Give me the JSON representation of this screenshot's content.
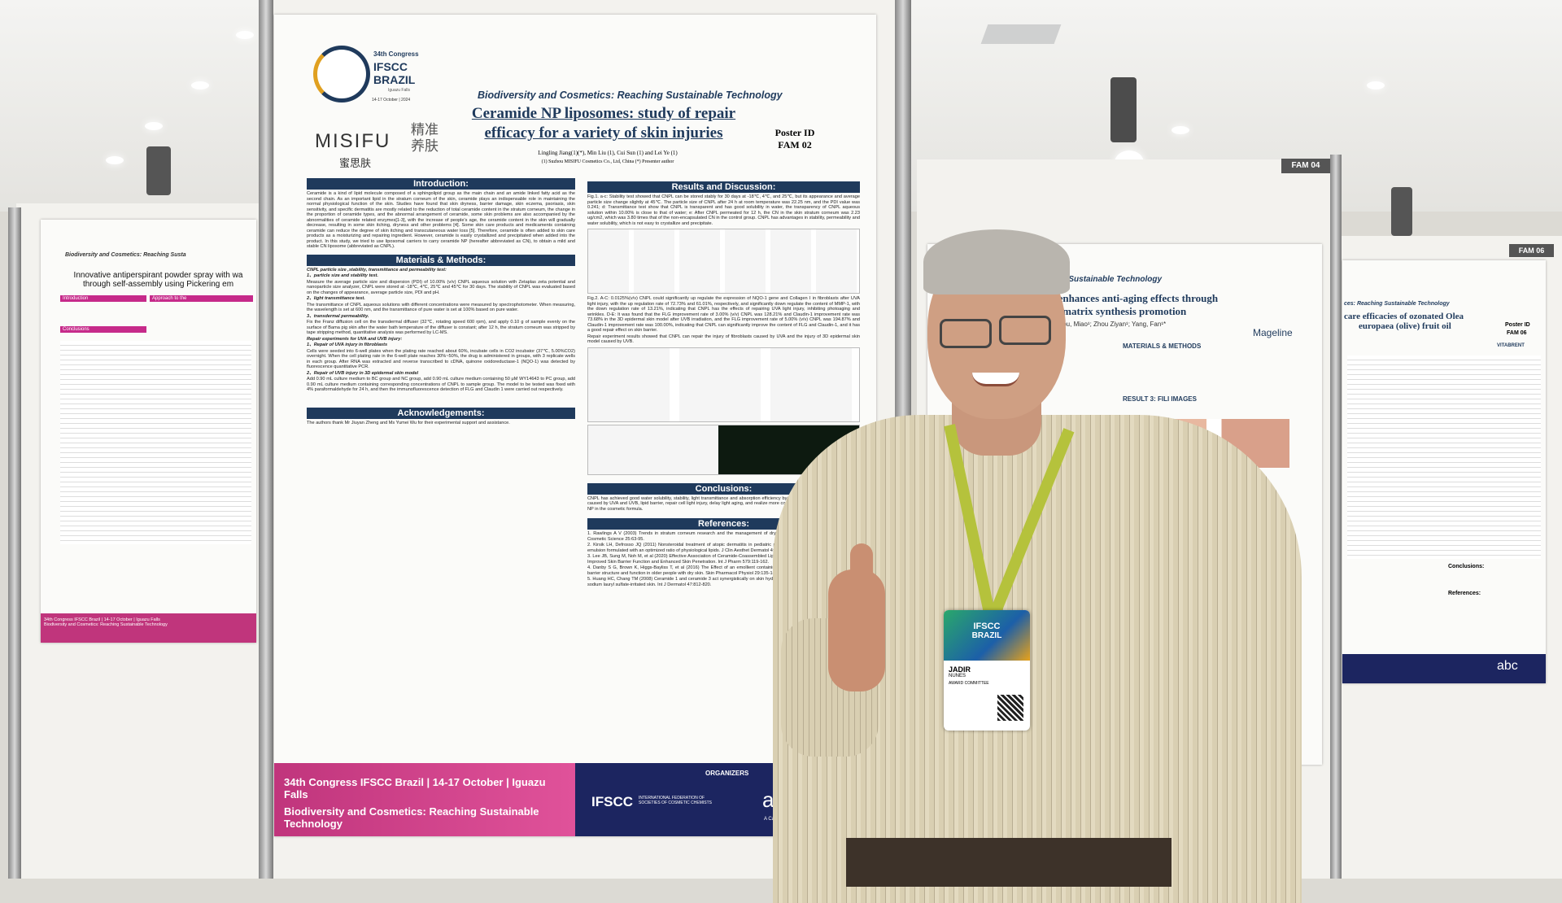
{
  "main_poster": {
    "logo": {
      "edition": "34th Congress",
      "name": "IFSCC",
      "country": "BRAZIL",
      "place": "Iguazu Falls",
      "dates": "14-17 October | 2024"
    },
    "brand": "MISIFU",
    "brand_chinese": "蜜思肤",
    "brand_seal": "精准养肤",
    "theme": "Biodiversity and Cosmetics: Reaching Sustainable Technology",
    "title": "Ceramide NP liposomes: study of repair efficacy for a variety of skin injuries",
    "authors": "Lingling Jiang(1)(*), Min Liu (1), Cui Sun (1) and Lei Ye (1)",
    "affiliation": "(1) Suzhou MISIFU Cosmetics Co., Ltd, China (*) Presenter author",
    "poster_id_label": "Poster ID",
    "poster_id": "FAM 02",
    "introduction": {
      "heading": "Introduction:",
      "text": "Ceramide is a kind of lipid molecule composed of a sphingolipid group as the main chain and an amide linked fatty acid as the second chain. As an important lipid in the stratum corneum of the skin, ceramide plays an indispensable role in maintaining the normal physiological function of the skin. Studies have found that skin dryness, barrier damage, skin eczema, psoriasis, skin sensitivity, and specific dermatitis are mostly related to the reduction of total ceramide content in the stratum corneum, the change in the proportion of ceramide types, and the abnormal arrangement of ceramide, some skin problems are also accompanied by the abnormalities of ceramide related enzymes[1-3], with the increase of people's age, the ceramide content in the skin will gradually decrease, resulting in some skin itching, dryness and other problems [4]. Some skin care products and medicaments containing ceramide can reduce the degree of skin itching and transcutaneous water loss [5]. Therefore, ceramide is often added to skin care products as a moisturizing and repairing ingredient. However, ceramide is easily crystallized and precipitated when added into the product. In this study, we tried to use liposomal carriers to carry ceramide NP (hereafter abbreviated as CN), to obtain a mild and stable CN liposome (abbreviated as CNPL)."
    },
    "methods": {
      "heading": "Materials & Methods:",
      "paragraphs": [
        "CNPL particle size ,stability, transmittance and permeability test:",
        "1、particle size and stability test.",
        "Measure the average particle size and dispersion (PDI) of 10.00% (v/v) CNPL aqueous solution with Zetaplas zeta potential and nanoparticle size analyzer, CNPL were stored at -18℃, 4℃, 25℃ and 45℃ for 30 days. The stability of CNPL was evaluated based on the changes of appearance, average particle size, PDI and pH.",
        "2、light transmittance test.",
        "The transmittance of CNPL aqueous solutions with different concentrations were measured by spectrophotometer. When measuring, the wavelength is set at 600 nm, and the transmittance of pure water is set at 100% based on pure water.",
        "3、transdermal permeability.",
        "Fix the Franz diffusion cell on the transdermal diffuser (32℃, rotating speed 600 rpm), and apply 0.10 g of sample evenly on the surface of Bama pig skin after the water bath temperature of the diffuser is constant; after 12 h, the stratum corneum was stripped by tape stripping method, quantitative analysis was performed by LC-MS.",
        "Repair experiments for UVA and UVB injury:",
        "1、Repair of UVA injury in fibroblasts",
        "Cells were seeded into 6-well plates when the plating rate reached about 60%, incubate cells in CO2 incubator (37℃, 5.00%CO2) overnight. When the cell plating rate in the 6-well plate reaches 30%~50%, the drug is administered in groups, with 3 replicate wells in each group. After RNA was extracted and reverse transcribed to cDNA, quinone oxidoreductase-1 (NQO-1) was detected by fluorescence quantitative PCR.",
        "2、Repair of UVB injury in 3D epidermal skin model",
        "Add 0.90 mL culture medium to BC group and NC group, add 0.90 mL culture medium containing 50 μM WY14643 to PC group, add 0.90 mL culture medium containing corresponding concentrations of CNPL to sample group. The model to be tested was fixed with 4% paraformaldehyde for 24 h, and then the immunofluorescence detection of FLG and Claudin 1 were carried out respectively."
      ]
    },
    "acknowledgements": {
      "heading": "Acknowledgements:",
      "text": "The authors thank Mr Jiuyan Zheng and Ms Yumei Wu for their experimental support and assistance."
    },
    "results": {
      "heading": "Results and Discussion:",
      "paragraphs": [
        "Fig.1. a-c: Stability test showed that CNPL can be stored stably for 30 days at -18℃, 4℃, and 25℃, but its appearance and average particle size change slightly at 45℃. The particle size of CNPL after 24 h at room temperature was 22.25 nm, and the PDI value was 0.241; d: Transmittance test show that CNPL is transparent and has good solubility in water, the transparency of CNPL aqueous solution within 10.00% is close to that of water; e: After CNPL permeated for 12 h, the CN in the skin stratum corneum was 2.23 ug/cm2, which was 3.80 times that of the non-encapsulated CN in the control group. CNPL has advantages in stability, permeability and water solubility, which is not easy to crystallize and precipitate.",
        "Fig.2. A-C: 0.0125%(v/v) CNPL could significantly up regulate the expression of NQO-1 gene and Collagen Ⅰ in fibroblasts after UVA light injury, with the up regulation rate of 72.73% and 61.01%, respectively, and significantly down regulate the content of MMP-1, with the down regulation rate of 13.21%, indicating that CNPL has the effects of repairing UVA light injury, inhibiting photoaging and wrinkles. D-E: It was found that the FLG improvement rate of 3.00% (v/v) CNPL was 128.21% and Claudin-1 improvement rate was 73.68% in the 3D epidermal skin model after UVB irradiation, and the FLG improvement rate of 5.00% (v/v) CNPL was 194.87% and Claudin-1 improvement rate was 100.00%, indicating that CNPL can significantly improve the content of FLG and Claudin-1, and it has a good repair effect on skin barrier.",
        "Repair experiment results showed that CNPL can repair the injury of fibroblasts caused by UVA and the injury of 3D epidermal skin model caused by UVB."
      ]
    },
    "conclusions": {
      "heading": "Conclusions:",
      "text": "CNPL has achieved good water solubility, stability, light transmittance and absorption efficiency by wrapping. It can repair skin injuries caused by UVA and UVB, lipid barrier, repair cell light injury, delay light aging, and realize more conversion and application of ceramide NP in the cosmetic formula."
    },
    "references": {
      "heading": "References:",
      "items": [
        "1. Rawlings A V (2003) Trends in stratum corneum research and the management of dry skin conditions. International Journal of Cosmetic Science 25:63-95.",
        "2. Kirsik LH, Defrosso JQ (2011) Nonsteroidal treatment of atopic dermatitis in pediatric patients with a ceramide-dominant topical emulsion formulated with an optimized ratio of physiological lipids. J Clin Aesthet Dermatol 4:25-31.",
        "3. Lee JB, Sung M, Noh M, et al (2020) Effective Association of Ceramide-Coassembled Lipid Nanovehicles with Stratum Corneum for Improved Skin Barrier Function and Enhanced Skin Penetration. Int J Pharm 579:119-162.",
        "4. Danby S G, Brown K, Higgs-Bayliss T, et al (2016) The Effect of an emollient containing urea, ceramide np, and lactate on skin barrier structure and function in older people with dry skin. Skin Pharmacol Physiol 29:135-147.",
        "5. Huang HC, Chang TM (2008) Ceramide 1 and ceramide 3 act synergistically on skin hydration and the transepidermal water loss of sodium lauryl sulfate-irritated skin. Int J Dermatol 47:812-820."
      ]
    },
    "footer": {
      "line1": "34th Congress IFSCC Brazil | 14-17 October | Iguazu Falls",
      "line2": "Biodiversity and Cosmetics: Reaching Sustainable Technology",
      "organizers": "ORGANIZERS",
      "ifscc": "IFSCC",
      "ifscc_full": "INTERNATIONAL FEDERATION OF SOCIETIES OF COSMETIC CHEMISTS",
      "abc": "abc",
      "abc_tagline": "A Casa da Cosmetologia"
    }
  },
  "left_poster": {
    "theme": "Biodiversity and Cosmetics: Reaching Susta",
    "title_1": "Innovative antiperspirant powder spray with wa",
    "title_2": "through self-assembly using Pickering em",
    "introduction": "Introduction",
    "approach": "Approach to the",
    "conclusions": "Conclusions",
    "footer": "34th Congress IFSCC Brazil | 14-17 October | Iguazu Falls",
    "footer_2": "Biodiversity and Cosmetics: Reaching Sustainable Technology"
  },
  "right_poster": {
    "board": "FAM 04",
    "theme": "y and Cosmetics: Reaching Sustainable Technology",
    "title_1": "am enhances anti-aging effects through",
    "title_2": "ular matrix synthesis promotion",
    "authors": "Gou, Miao¹; Zhou Ziyan¹; Yang, Fan¹*",
    "brand": "Mageline",
    "methods": "MATERIALS & METHODS",
    "result": "RESULT 3: FILI IMAGES"
  },
  "far_right_poster": {
    "board": "FAM 06",
    "theme": "ces: Reaching Sustainable Technology",
    "title_1": "care efficacies of ozonated Olea",
    "title_2": "europaea (olive) fruit oil",
    "poster_id_label": "Poster ID",
    "poster_id": "FAM 06",
    "conclusions": "Conclusions:",
    "references": "References:",
    "brand": "VITABRENT",
    "abc": "abc"
  },
  "badge": {
    "logo": "IFSCC",
    "logo_2": "BRAZIL",
    "first_name": "JADIR",
    "last_name": "NUNES",
    "role": "AWARD COMMITTEE"
  }
}
